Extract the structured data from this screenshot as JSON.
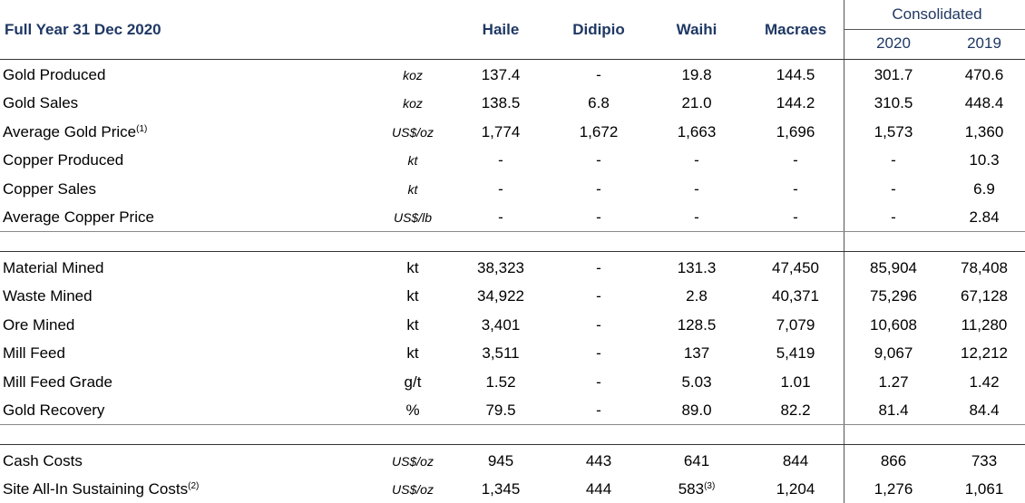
{
  "header": {
    "title": "Full Year 31 Dec 2020",
    "columns": [
      "Haile",
      "Didipio",
      "Waihi",
      "Macraes"
    ],
    "group": "Consolidated",
    "years": [
      "2020",
      "2019"
    ]
  },
  "sections": [
    {
      "rows": [
        {
          "label": "Gold Produced",
          "unit": "koz",
          "values": [
            "137.4",
            "-",
            "19.8",
            "144.5",
            "301.7",
            "470.6"
          ]
        },
        {
          "label": "Gold Sales",
          "unit": "koz",
          "values": [
            "138.5",
            "6.8",
            "21.0",
            "144.2",
            "310.5",
            "448.4"
          ]
        },
        {
          "label": "Average Gold Price",
          "label_note": "(1)",
          "unit": "US$/oz",
          "values": [
            "1,774",
            "1,672",
            "1,663",
            "1,696",
            "1,573",
            "1,360"
          ]
        },
        {
          "label": "Copper Produced",
          "unit": "kt",
          "values": [
            "-",
            "-",
            "-",
            "-",
            "-",
            "10.3"
          ]
        },
        {
          "label": "Copper Sales",
          "unit": "kt",
          "values": [
            "-",
            "-",
            "-",
            "-",
            "-",
            "6.9"
          ]
        },
        {
          "label": "Average Copper Price",
          "unit": "US$/lb",
          "values": [
            "-",
            "-",
            "-",
            "-",
            "-",
            "2.84"
          ]
        }
      ]
    },
    {
      "rows": [
        {
          "label": "Material Mined",
          "unit": "kt",
          "values": [
            "38,323",
            "-",
            "131.3",
            "47,450",
            "85,904",
            "78,408"
          ]
        },
        {
          "label": "Waste Mined",
          "unit": "kt",
          "values": [
            "34,922",
            "-",
            "2.8",
            "40,371",
            "75,296",
            "67,128"
          ]
        },
        {
          "label": "Ore Mined",
          "unit": "kt",
          "values": [
            "3,401",
            "-",
            "128.5",
            "7,079",
            "10,608",
            "11,280"
          ]
        },
        {
          "label": "Mill Feed",
          "unit": "kt",
          "values": [
            "3,511",
            "-",
            "137",
            "5,419",
            "9,067",
            "12,212"
          ]
        },
        {
          "label": "Mill Feed Grade",
          "unit": "g/t",
          "values": [
            "1.52",
            "-",
            "5.03",
            "1.01",
            "1.27",
            "1.42"
          ]
        },
        {
          "label": "Gold Recovery",
          "unit": "%",
          "values": [
            "79.5",
            "-",
            "89.0",
            "82.2",
            "81.4",
            "84.4"
          ]
        }
      ]
    },
    {
      "rows": [
        {
          "label": "Cash Costs",
          "unit": "US$/oz",
          "values": [
            "945",
            "443",
            "641",
            "844",
            "866",
            "733"
          ]
        },
        {
          "label": "Site All-In Sustaining Costs",
          "label_note": "(2)",
          "unit": "US$/oz",
          "values": [
            "1,345",
            "444",
            {
              "text": "583",
              "note": "(3)"
            },
            "1,204",
            "1,276",
            "1,061"
          ]
        }
      ]
    }
  ]
}
